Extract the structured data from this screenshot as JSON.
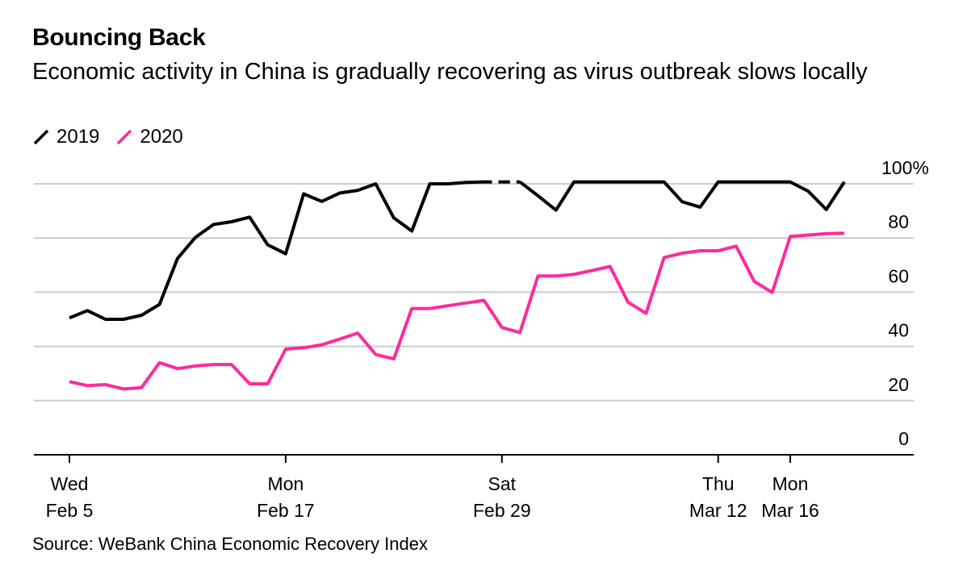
{
  "chart_data": {
    "type": "line",
    "title": "Bouncing Back",
    "subtitle": "Economic activity in China is gradually recovering as virus outbreak slows locally",
    "source": "Source: WeBank China Economic Recovery Index",
    "ylim": [
      0,
      100
    ],
    "yticks": [
      "0",
      "20",
      "40",
      "60",
      "80",
      "100%"
    ],
    "ytick_values": [
      0,
      20,
      40,
      60,
      80,
      100
    ],
    "x_count": 44,
    "xticks": [
      {
        "index": 0,
        "line1": "Wed",
        "line2": "Feb 5"
      },
      {
        "index": 12,
        "line1": "Mon",
        "line2": "Feb 17"
      },
      {
        "index": 24,
        "line1": "Sat",
        "line2": "Feb 29"
      },
      {
        "index": 36,
        "line1": "Thu",
        "line2": "Mar 12"
      },
      {
        "index": 40,
        "line1": "Mon",
        "line2": "Mar 16"
      }
    ],
    "series": [
      {
        "name": "2019",
        "color": "#000000",
        "dashed_segments": [
          [
            23,
            25
          ]
        ],
        "values": [
          50.5,
          53.2,
          50,
          50,
          51.5,
          55.5,
          72.5,
          80.3,
          85,
          86,
          87.7,
          77.5,
          74.2,
          96.3,
          93.5,
          96.6,
          97.6,
          100,
          87.4,
          82.6,
          100,
          100,
          100.5,
          100.7,
          100.7,
          100.7,
          95.6,
          90.3,
          100.7,
          100.7,
          100.7,
          100.7,
          100.7,
          100.7,
          93.4,
          91.4,
          100.7,
          100.7,
          100.7,
          100.7,
          100.7,
          97.3,
          90.5,
          100.7
        ]
      },
      {
        "name": "2020",
        "color": "#ff2a9b",
        "values": [
          27,
          25.5,
          25.9,
          24.3,
          24.8,
          34,
          31.8,
          32.8,
          33.3,
          33.3,
          26.2,
          26.2,
          39,
          39.5,
          40.6,
          42.7,
          44.9,
          37,
          35.4,
          54,
          54,
          55,
          56,
          57,
          47,
          45.1,
          66,
          66,
          66.6,
          68,
          69.5,
          56.3,
          52.2,
          72.8,
          74.4,
          75.3,
          75.3,
          77,
          64,
          59.9,
          80.6,
          81.1,
          81.6,
          81.8
        ]
      }
    ]
  }
}
